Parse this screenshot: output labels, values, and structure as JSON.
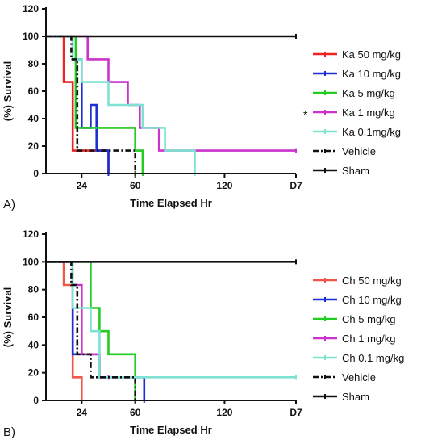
{
  "chart_data": [
    {
      "type": "line",
      "panel_label": "A)",
      "xlabel": "Time Elapsed Hr",
      "ylabel": "(%) Survival",
      "xlim": [
        0,
        168
      ],
      "ylim": [
        0,
        120
      ],
      "x_ticks": [
        {
          "value": 24,
          "label": "24"
        },
        {
          "value": 60,
          "label": "60"
        },
        {
          "value": 120,
          "label": "120"
        },
        {
          "value": 168,
          "label": "D7"
        }
      ],
      "y_ticks": [
        0,
        20,
        40,
        60,
        80,
        100,
        120
      ],
      "legend_position": "right",
      "series": [
        {
          "name": "Ka 50 mg/kg",
          "color": "#ee2222",
          "dash": "solid",
          "marker": "",
          "steps": [
            [
              0,
              100
            ],
            [
              12,
              100
            ],
            [
              12,
              66.7
            ],
            [
              18,
              66.7
            ],
            [
              18,
              16.7
            ],
            [
              42,
              16.7
            ],
            [
              42,
              0
            ]
          ]
        },
        {
          "name": "Ka 10 mg/kg",
          "color": "#1a2fd6",
          "dash": "solid",
          "marker": "",
          "steps": [
            [
              0,
              100
            ],
            [
              18,
              100
            ],
            [
              18,
              83.3
            ],
            [
              24,
              83.3
            ],
            [
              24,
              33.3
            ],
            [
              30,
              33.3
            ],
            [
              30,
              50
            ],
            [
              34,
              50
            ],
            [
              34,
              16.7
            ],
            [
              42,
              16.7
            ],
            [
              42,
              0
            ]
          ]
        },
        {
          "name": "Ka 5   mg/kg",
          "color": "#22cc22",
          "dash": "solid",
          "marker": "",
          "steps": [
            [
              0,
              100
            ],
            [
              20,
              100
            ],
            [
              20,
              33.3
            ],
            [
              42,
              33.3
            ],
            [
              42,
              33.3
            ],
            [
              60,
              33.3
            ],
            [
              60,
              16.7
            ],
            [
              65,
              16.7
            ],
            [
              65,
              0
            ]
          ]
        },
        {
          "name": "Ka 1   mg/kg",
          "color": "#cc33cc",
          "dash": "solid",
          "marker": "*",
          "steps": [
            [
              0,
              100
            ],
            [
              28,
              100
            ],
            [
              28,
              83.3
            ],
            [
              42,
              83.3
            ],
            [
              42,
              66.7
            ],
            [
              55,
              66.7
            ],
            [
              55,
              50
            ],
            [
              63,
              50
            ],
            [
              63,
              33.3
            ],
            [
              76,
              33.3
            ],
            [
              76,
              16.7
            ],
            [
              168,
              16.7
            ]
          ]
        },
        {
          "name": "Ka 0.1mg/kg",
          "color": "#7ee2d2",
          "dash": "solid",
          "marker": "",
          "steps": [
            [
              0,
              100
            ],
            [
              18,
              100
            ],
            [
              18,
              83.3
            ],
            [
              24,
              83.3
            ],
            [
              24,
              66.7
            ],
            [
              42,
              66.7
            ],
            [
              42,
              50
            ],
            [
              65,
              50
            ],
            [
              65,
              33.3
            ],
            [
              80,
              33.3
            ],
            [
              80,
              16.7
            ],
            [
              100,
              16.7
            ],
            [
              100,
              0
            ]
          ]
        },
        {
          "name": "Vehicle",
          "color": "#111111",
          "dash": "dashdot",
          "marker": "",
          "steps": [
            [
              0,
              100
            ],
            [
              17,
              100
            ],
            [
              17,
              83.3
            ],
            [
              21,
              83.3
            ],
            [
              21,
              16.7
            ],
            [
              60,
              16.7
            ],
            [
              60,
              0
            ]
          ]
        },
        {
          "name": "Sham",
          "color": "#111111",
          "dash": "solid",
          "marker": "",
          "steps": [
            [
              0,
              100
            ],
            [
              168,
              100
            ]
          ]
        }
      ]
    },
    {
      "type": "line",
      "panel_label": "B)",
      "xlabel": "Time Elapsed Hr",
      "ylabel": "(%) Survival",
      "xlim": [
        0,
        168
      ],
      "ylim": [
        0,
        120
      ],
      "x_ticks": [
        {
          "value": 24,
          "label": "24"
        },
        {
          "value": 60,
          "label": "60"
        },
        {
          "value": 120,
          "label": "120"
        },
        {
          "value": 168,
          "label": "D7"
        }
      ],
      "y_ticks": [
        0,
        20,
        40,
        60,
        80,
        100,
        120
      ],
      "legend_position": "right",
      "series": [
        {
          "name": "Ch 50 mg/kg",
          "color": "#f0564a",
          "dash": "solid",
          "marker": "",
          "steps": [
            [
              0,
              100
            ],
            [
              12,
              100
            ],
            [
              12,
              83.3
            ],
            [
              18,
              83.3
            ],
            [
              18,
              16.7
            ],
            [
              24,
              16.7
            ],
            [
              24,
              0
            ]
          ]
        },
        {
          "name": "Ch 10 mg/kg",
          "color": "#1a2fd6",
          "dash": "solid",
          "marker": "",
          "steps": [
            [
              0,
              100
            ],
            [
              18,
              100
            ],
            [
              18,
              33.3
            ],
            [
              30,
              33.3
            ],
            [
              30,
              33.3
            ],
            [
              36,
              33.3
            ],
            [
              36,
              16.7
            ],
            [
              66,
              16.7
            ],
            [
              66,
              0
            ]
          ]
        },
        {
          "name": "Ch 5   mg/kg",
          "color": "#22cc22",
          "dash": "solid",
          "marker": "",
          "steps": [
            [
              0,
              100
            ],
            [
              30,
              100
            ],
            [
              30,
              66.7
            ],
            [
              36,
              66.7
            ],
            [
              36,
              50
            ],
            [
              42,
              50
            ],
            [
              42,
              33.3
            ],
            [
              60,
              33.3
            ],
            [
              60,
              0
            ]
          ]
        },
        {
          "name": "Ch 1   mg/kg",
          "color": "#cc33cc",
          "dash": "solid",
          "marker": "",
          "steps": [
            [
              0,
              100
            ],
            [
              18,
              100
            ],
            [
              18,
              83.3
            ],
            [
              24,
              83.3
            ],
            [
              24,
              33.3
            ],
            [
              36,
              33.3
            ],
            [
              36,
              16.7
            ],
            [
              42,
              16.7
            ]
          ]
        },
        {
          "name": "Ch 0.1 mg/kg",
          "color": "#7ee2d2",
          "dash": "solid",
          "marker": "",
          "steps": [
            [
              0,
              100
            ],
            [
              18,
              100
            ],
            [
              18,
              66.7
            ],
            [
              30,
              66.7
            ],
            [
              30,
              50
            ],
            [
              36,
              50
            ],
            [
              36,
              16.7
            ],
            [
              168,
              16.7
            ]
          ]
        },
        {
          "name": "Vehicle",
          "color": "#111111",
          "dash": "dashdot",
          "marker": "",
          "steps": [
            [
              0,
              100
            ],
            [
              17,
              100
            ],
            [
              17,
              83.3
            ],
            [
              21,
              83.3
            ],
            [
              21,
              33.3
            ],
            [
              30,
              33.3
            ],
            [
              30,
              16.7
            ],
            [
              60,
              16.7
            ],
            [
              60,
              0
            ]
          ]
        },
        {
          "name": "Sham",
          "color": "#111111",
          "dash": "solid",
          "marker": "",
          "steps": [
            [
              0,
              100
            ],
            [
              168,
              100
            ]
          ]
        }
      ]
    }
  ]
}
